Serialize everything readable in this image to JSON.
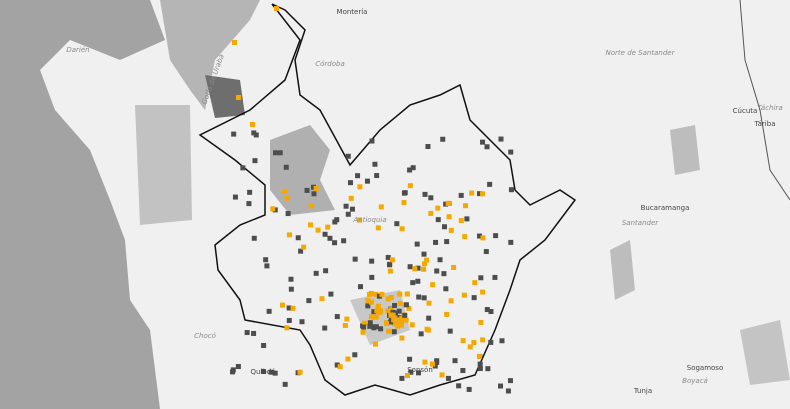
{
  "map": {
    "labels": [
      {
        "text": "Montería",
        "kind": "city"
      },
      {
        "text": "Córdoba",
        "kind": "region"
      },
      {
        "text": "Darién",
        "kind": "region"
      },
      {
        "text": "Golfo de Urabá",
        "kind": "region"
      },
      {
        "text": "Norte de Santander",
        "kind": "region"
      },
      {
        "text": "Cúcuta",
        "kind": "city"
      },
      {
        "text": "Táchira",
        "kind": "region"
      },
      {
        "text": "Táriba",
        "kind": "city"
      },
      {
        "text": "Bucaramanga",
        "kind": "city"
      },
      {
        "text": "Santander",
        "kind": "region"
      },
      {
        "text": "Antioquia",
        "kind": "region"
      },
      {
        "text": "Chocó",
        "kind": "region"
      },
      {
        "text": "Quibdó",
        "kind": "city"
      },
      {
        "text": "Sonsón",
        "kind": "city"
      },
      {
        "text": "Sogamoso",
        "kind": "city"
      },
      {
        "text": "Boyacá",
        "kind": "region"
      },
      {
        "text": "Tunja",
        "kind": "city"
      }
    ]
  }
}
